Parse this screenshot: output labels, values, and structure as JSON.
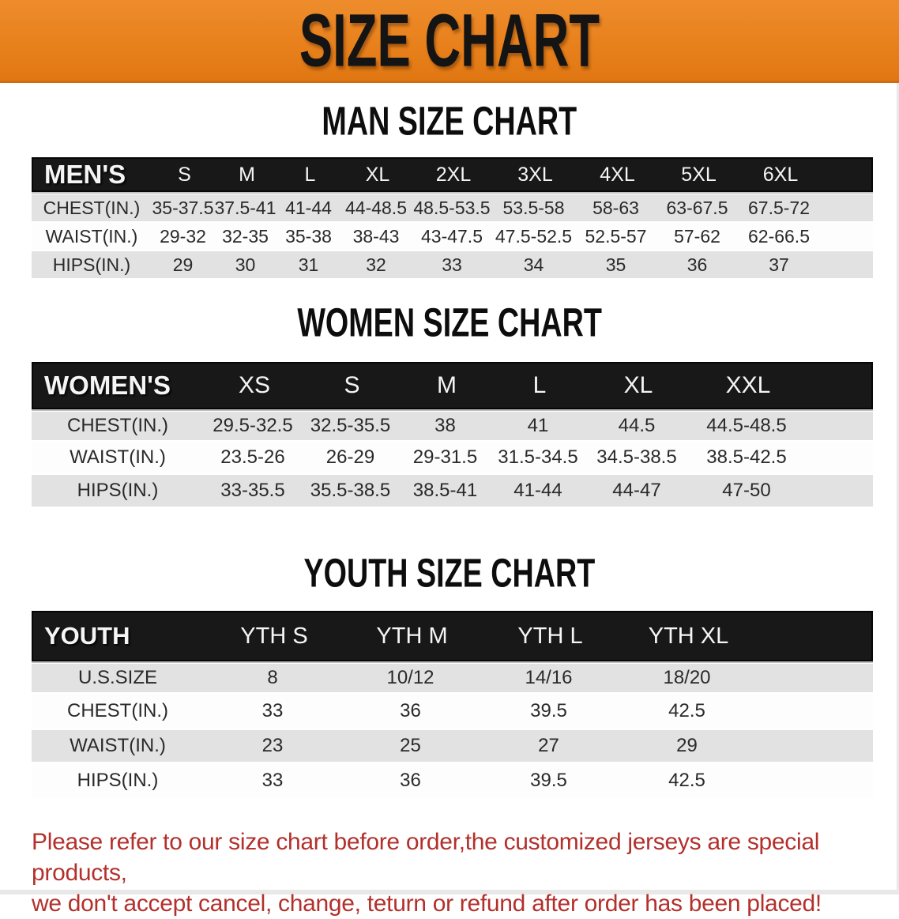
{
  "banner": {
    "title": "SIZE CHART",
    "background_color": "#e8811c",
    "text_color": "#141414"
  },
  "sections": {
    "men": {
      "heading": "MAN SIZE CHART"
    },
    "women": {
      "heading": "WOMEN SIZE CHART"
    },
    "youth": {
      "heading": "YOUTH SIZE CHART"
    }
  },
  "tables": {
    "men": {
      "header": {
        "label": "MEN'S",
        "sizes": [
          "S",
          "M",
          "L",
          "XL",
          "2XL",
          "3XL",
          "4XL",
          "5XL",
          "6XL"
        ]
      },
      "rows": [
        {
          "label": "CHEST(IN.)",
          "values": [
            "35-37.5",
            "37.5-41",
            "41-44",
            "44-48.5",
            "48.5-53.5",
            "53.5-58",
            "58-63",
            "63-67.5",
            "67.5-72"
          ]
        },
        {
          "label": "WAIST(IN.)",
          "values": [
            "29-32",
            "32-35",
            "35-38",
            "38-43",
            "43-47.5",
            "47.5-52.5",
            "52.5-57",
            "57-62",
            "62-66.5"
          ]
        },
        {
          "label": "HIPS(IN.)",
          "values": [
            "29",
            "30",
            "31",
            "32",
            "33",
            "34",
            "35",
            "36",
            "37"
          ]
        }
      ]
    },
    "women": {
      "header": {
        "label": "WOMEN'S",
        "sizes": [
          "XS",
          "S",
          "M",
          "L",
          "XL",
          "XXL"
        ]
      },
      "rows": [
        {
          "label": "CHEST(IN.)",
          "values": [
            "29.5-32.5",
            "32.5-35.5",
            "38",
            "41",
            "44.5",
            "44.5-48.5"
          ]
        },
        {
          "label": "WAIST(IN.)",
          "values": [
            "23.5-26",
            "26-29",
            "29-31.5",
            "31.5-34.5",
            "34.5-38.5",
            "38.5-42.5"
          ]
        },
        {
          "label": "HIPS(IN.)",
          "values": [
            "33-35.5",
            "35.5-38.5",
            "38.5-41",
            "41-44",
            "44-47",
            "47-50"
          ]
        }
      ]
    },
    "youth": {
      "header": {
        "label": "YOUTH",
        "sizes": [
          "YTH S",
          "YTH M",
          "YTH L",
          "YTH XL"
        ]
      },
      "rows": [
        {
          "label": "U.S.SIZE",
          "values": [
            "8",
            "10/12",
            "14/16",
            "18/20"
          ]
        },
        {
          "label": "CHEST(IN.)",
          "values": [
            "33",
            "36",
            "39.5",
            "42.5"
          ]
        },
        {
          "label": "WAIST(IN.)",
          "values": [
            "23",
            "25",
            "27",
            "29"
          ]
        },
        {
          "label": "HIPS(IN.)",
          "values": [
            "33",
            "36",
            "39.5",
            "42.5"
          ]
        }
      ]
    }
  },
  "note": {
    "line1": "Please refer to our size chart before order,the customized jerseys are special products,",
    "line2": "we don't accept cancel, change, teturn or refund after order has been placed!",
    "text_color": "#b3302c"
  },
  "row_colors": {
    "grey_row": "#e2e2e2",
    "white_row": "#fdfdfd",
    "header_row": "#181818"
  }
}
